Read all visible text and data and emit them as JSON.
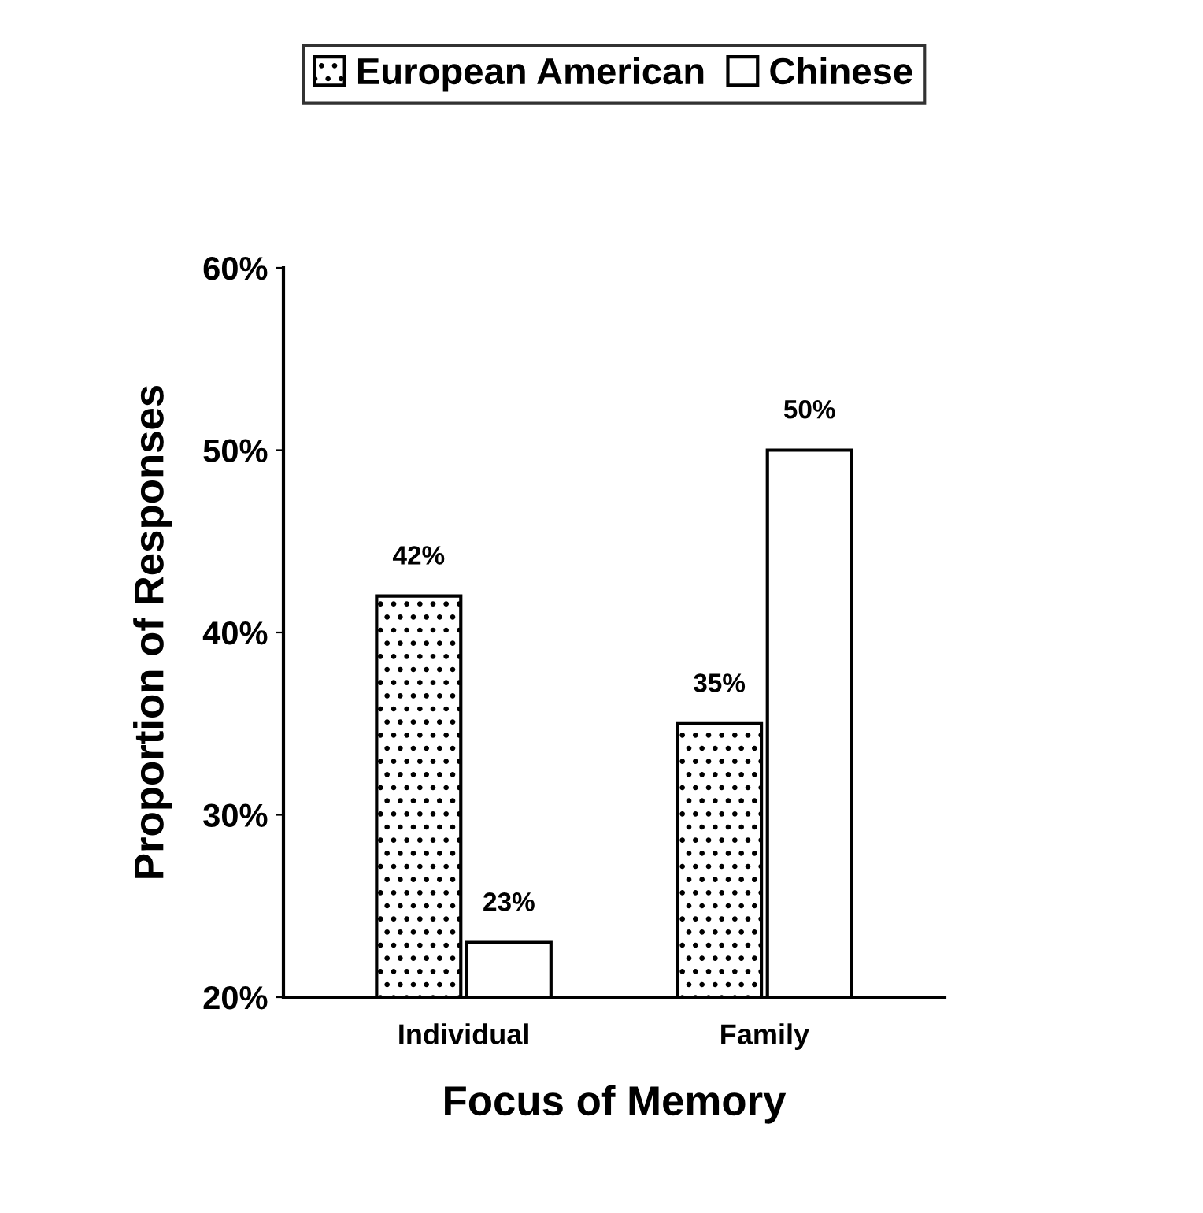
{
  "chart_data": {
    "type": "bar",
    "xlabel": "Focus of Memory",
    "ylabel": "Proportion of Responses",
    "categories": [
      "Individual",
      "Family"
    ],
    "series": [
      {
        "name": "European American",
        "color": "#000000",
        "values": [
          42,
          35
        ],
        "value_labels": [
          "42%",
          "35%"
        ]
      },
      {
        "name": "Chinese",
        "color": "#ffffff",
        "values": [
          23,
          50
        ],
        "value_labels": [
          "23%",
          "50%"
        ]
      }
    ],
    "ylim": [
      20,
      60
    ],
    "yticks": [
      {
        "value": 20,
        "label": "20%"
      },
      {
        "value": 30,
        "label": "30%"
      },
      {
        "value": 40,
        "label": "40%"
      },
      {
        "value": 50,
        "label": "50%"
      },
      {
        "value": 60,
        "label": "60%"
      }
    ],
    "legend": "top",
    "grid": false
  }
}
